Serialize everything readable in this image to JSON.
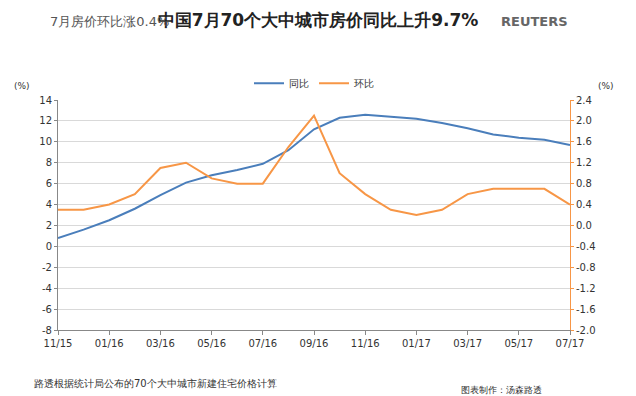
{
  "chart_data": {
    "type": "line",
    "title": "中国7月70个大中城市房价同比上升9.7%",
    "subtitle": "7月房价环比涨0.4%",
    "logo": "REUTERS",
    "y_label": "(%)",
    "y2_label": "(%)",
    "source": "路透根据统计局公布的70个大中城市新建住宅价格计算",
    "credit": "图表制作：汤森路透",
    "categories": [
      "11/15",
      null,
      "01/16",
      null,
      "03/16",
      null,
      "05/16",
      null,
      "07/16",
      null,
      "09/16",
      null,
      "11/16",
      null,
      "01/17",
      null,
      "03/17",
      null,
      "05/17",
      null,
      "07/17"
    ],
    "series": [
      {
        "name": "同比",
        "color": "#4a7ebb",
        "axis": "y",
        "values": [
          0.8,
          1.6,
          2.5,
          3.6,
          4.9,
          6.1,
          6.8,
          7.3,
          7.9,
          9.2,
          11.2,
          12.3,
          12.6,
          12.4,
          12.2,
          11.8,
          11.3,
          10.7,
          10.4,
          10.2,
          9.7
        ]
      },
      {
        "name": "环比",
        "color": "#f79646",
        "axis": "y2",
        "values": [
          0.3,
          0.3,
          0.4,
          0.6,
          1.1,
          1.2,
          0.9,
          0.8,
          0.8,
          1.5,
          2.1,
          1.0,
          0.6,
          0.3,
          0.2,
          0.3,
          0.6,
          0.7,
          0.7,
          0.7,
          0.4
        ]
      }
    ],
    "ylim": [
      -8,
      14
    ],
    "yticks": [
      -8,
      -6,
      -4,
      -2,
      0,
      2,
      4,
      6,
      8,
      10,
      12,
      14
    ],
    "y2lim": [
      -2,
      2.4
    ],
    "y2ticks": [
      {
        "value": -2,
        "label": "-2.0"
      },
      -1.6,
      -1.2,
      -0.8,
      -0.4,
      {
        "value": 0,
        "label": "0.0"
      },
      0.4,
      0.8,
      1.2,
      1.6,
      {
        "value": 2,
        "label": "2.0"
      },
      2.4
    ],
    "grid": true,
    "legend": "top"
  }
}
